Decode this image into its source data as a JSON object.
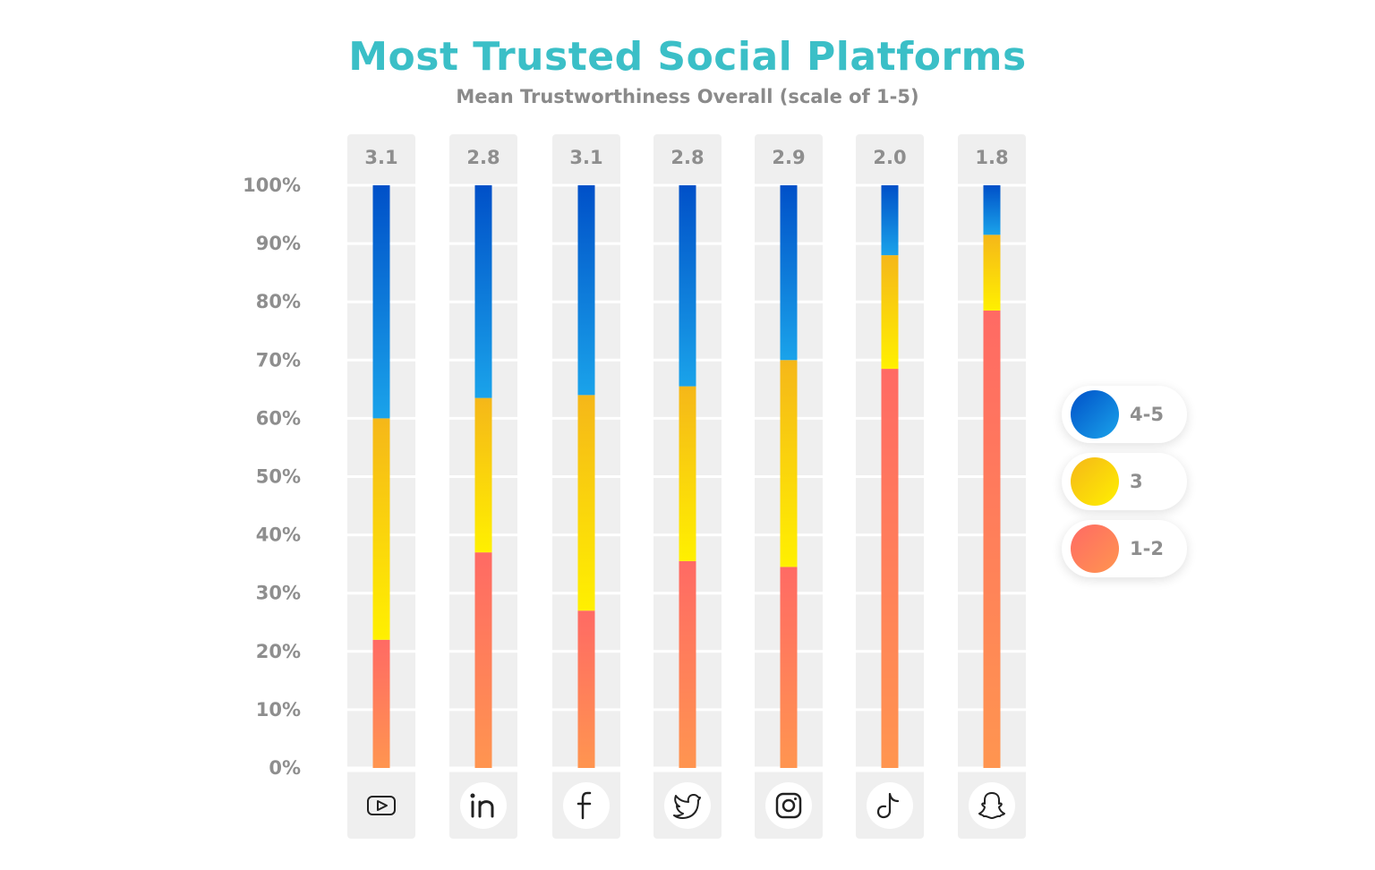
{
  "chart_data": {
    "type": "bar",
    "stacked": true,
    "title": "Most Trusted Social Platforms",
    "subtitle": "Mean Trustworthiness Overall (scale of 1-5)",
    "categories": [
      "youtube",
      "linkedin",
      "facebook",
      "twitter",
      "instagram",
      "tiktok",
      "snapchat"
    ],
    "mean_scores": [
      "3.1",
      "2.8",
      "3.1",
      "2.8",
      "2.9",
      "2.0",
      "1.8"
    ],
    "series": [
      {
        "name": "1-2",
        "values": [
          22,
          37,
          27,
          35.5,
          34.5,
          68.5,
          78.5
        ]
      },
      {
        "name": "3",
        "values": [
          38,
          26.5,
          37,
          30,
          35.5,
          19.5,
          13
        ]
      },
      {
        "name": "4-5",
        "values": [
          40,
          36.5,
          36,
          34.5,
          30,
          12,
          8.5
        ]
      }
    ],
    "yticks": [
      "0%",
      "10%",
      "20%",
      "30%",
      "40%",
      "50%",
      "60%",
      "70%",
      "80%",
      "90%",
      "100%"
    ],
    "ylim": [
      0,
      100
    ],
    "grid": true,
    "legend_position": "right",
    "colors": {
      "4-5": [
        "#0050c8",
        "#1aa3ea"
      ],
      "3": [
        "#f5b719",
        "#fff000"
      ],
      "1-2": [
        "#ff6a64",
        "#ff9550"
      ],
      "column_bg": "#efefef",
      "tick_text": "#8e8e8e",
      "title": "#3bbfc7"
    }
  }
}
